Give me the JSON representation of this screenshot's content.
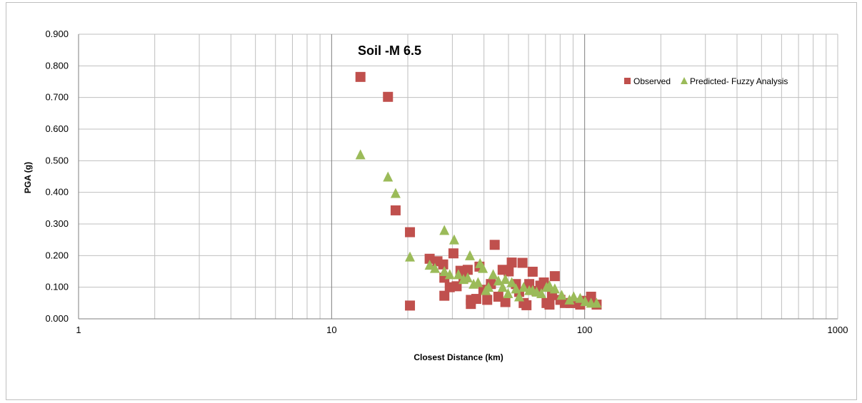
{
  "chart_data": {
    "type": "scatter",
    "title": "Soil -M 6.5",
    "xlabel": "Closest Distance (km)",
    "ylabel": "PGA (g)",
    "xscale": "log",
    "xlim": [
      1,
      1000
    ],
    "ylim": [
      0,
      0.9
    ],
    "x_ticks": [
      "1",
      "10",
      "100",
      "1000"
    ],
    "y_ticks": [
      "0.000",
      "0.100",
      "0.200",
      "0.300",
      "0.400",
      "0.500",
      "0.600",
      "0.700",
      "0.800",
      "0.900"
    ],
    "grid": true,
    "legend_position": "top-right",
    "series": [
      {
        "name": "Observed",
        "marker": "square",
        "color": "#c0504d",
        "points": [
          [
            13,
            0.765
          ],
          [
            16.7,
            0.702
          ],
          [
            17.9,
            0.343
          ],
          [
            20.4,
            0.274
          ],
          [
            20.4,
            0.042
          ],
          [
            24.4,
            0.19
          ],
          [
            26.2,
            0.182
          ],
          [
            27.6,
            0.172
          ],
          [
            27.9,
            0.13
          ],
          [
            27.9,
            0.073
          ],
          [
            29.3,
            0.1
          ],
          [
            30.3,
            0.207
          ],
          [
            31.2,
            0.103
          ],
          [
            32.3,
            0.152
          ],
          [
            33.2,
            0.13
          ],
          [
            34.5,
            0.155
          ],
          [
            35.5,
            0.06
          ],
          [
            35.5,
            0.047
          ],
          [
            37.3,
            0.063
          ],
          [
            38.4,
            0.165
          ],
          [
            39.8,
            0.092
          ],
          [
            41.2,
            0.06
          ],
          [
            42.6,
            0.11
          ],
          [
            44.1,
            0.234
          ],
          [
            45.6,
            0.07
          ],
          [
            47.4,
            0.155
          ],
          [
            48.6,
            0.053
          ],
          [
            50.1,
            0.15
          ],
          [
            51.5,
            0.178
          ],
          [
            53.5,
            0.11
          ],
          [
            55.1,
            0.085
          ],
          [
            56.8,
            0.177
          ],
          [
            57.4,
            0.05
          ],
          [
            58.9,
            0.043
          ],
          [
            60.4,
            0.11
          ],
          [
            62.3,
            0.149
          ],
          [
            64.6,
            0.088
          ],
          [
            66.8,
            0.105
          ],
          [
            69,
            0.115
          ],
          [
            70.7,
            0.05
          ],
          [
            72.6,
            0.045
          ],
          [
            74.3,
            0.075
          ],
          [
            76.2,
            0.135
          ],
          [
            80.2,
            0.06
          ],
          [
            83.5,
            0.05
          ],
          [
            88,
            0.05
          ],
          [
            92,
            0.05
          ],
          [
            96,
            0.045
          ],
          [
            100.5,
            0.057
          ],
          [
            106,
            0.07
          ],
          [
            111.5,
            0.045
          ]
        ]
      },
      {
        "name": "Predicted- Fuzzy Analysis",
        "marker": "triangle",
        "color": "#9bbb59",
        "points": [
          [
            13,
            0.519
          ],
          [
            16.7,
            0.449
          ],
          [
            17.9,
            0.397
          ],
          [
            20.4,
            0.196
          ],
          [
            24.4,
            0.17
          ],
          [
            25.6,
            0.16
          ],
          [
            27.9,
            0.28
          ],
          [
            27.9,
            0.15
          ],
          [
            29.3,
            0.14
          ],
          [
            30.5,
            0.25
          ],
          [
            31.7,
            0.14
          ],
          [
            33.2,
            0.125
          ],
          [
            34.5,
            0.13
          ],
          [
            35.2,
            0.2
          ],
          [
            36.4,
            0.11
          ],
          [
            37.9,
            0.115
          ],
          [
            38.6,
            0.175
          ],
          [
            39.6,
            0.16
          ],
          [
            40.7,
            0.09
          ],
          [
            41.7,
            0.1
          ],
          [
            43.5,
            0.14
          ],
          [
            45.6,
            0.12
          ],
          [
            47.4,
            0.1
          ],
          [
            48.6,
            0.125
          ],
          [
            49.8,
            0.08
          ],
          [
            51.5,
            0.115
          ],
          [
            53.5,
            0.095
          ],
          [
            55.1,
            0.07
          ],
          [
            57.4,
            0.1
          ],
          [
            60.4,
            0.09
          ],
          [
            62.3,
            0.09
          ],
          [
            64.6,
            0.085
          ],
          [
            67.4,
            0.08
          ],
          [
            70.7,
            0.1
          ],
          [
            72.6,
            0.105
          ],
          [
            76.2,
            0.095
          ],
          [
            81.1,
            0.075
          ],
          [
            87.1,
            0.06
          ],
          [
            90.5,
            0.07
          ],
          [
            96,
            0.065
          ],
          [
            100.5,
            0.055
          ],
          [
            106,
            0.05
          ],
          [
            111.5,
            0.05
          ]
        ]
      }
    ]
  }
}
